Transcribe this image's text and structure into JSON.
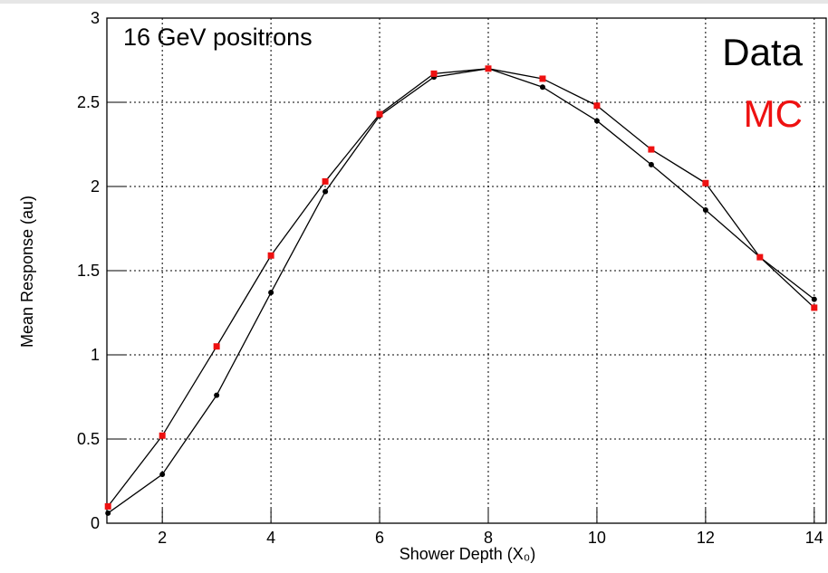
{
  "chart_data": {
    "type": "line",
    "annotation": "16 GeV positrons",
    "xlabel": "Shower Depth (X₀)",
    "ylabel": "Mean Response (au)",
    "x": [
      1,
      2,
      3,
      4,
      5,
      6,
      7,
      8,
      9,
      10,
      11,
      12,
      13,
      14
    ],
    "series": [
      {
        "name": "Data",
        "color": "#000000",
        "marker": "circle",
        "values": [
          0.06,
          0.29,
          0.76,
          1.37,
          1.97,
          2.42,
          2.65,
          2.7,
          2.59,
          2.39,
          2.13,
          1.86,
          1.58,
          1.33
        ]
      },
      {
        "name": "MC",
        "color": "#ee1111",
        "marker": "square",
        "values": [
          0.1,
          0.52,
          1.05,
          1.59,
          2.03,
          2.43,
          2.67,
          2.7,
          2.64,
          2.48,
          2.22,
          2.02,
          1.58,
          1.28
        ]
      }
    ],
    "xlim": [
      0.98,
      14.22
    ],
    "ylim": [
      0,
      3
    ],
    "xticks": [
      2,
      4,
      6,
      8,
      10,
      12,
      14
    ],
    "yticks": [
      0,
      0.5,
      1,
      1.5,
      2,
      2.5,
      3
    ],
    "grid": true
  }
}
